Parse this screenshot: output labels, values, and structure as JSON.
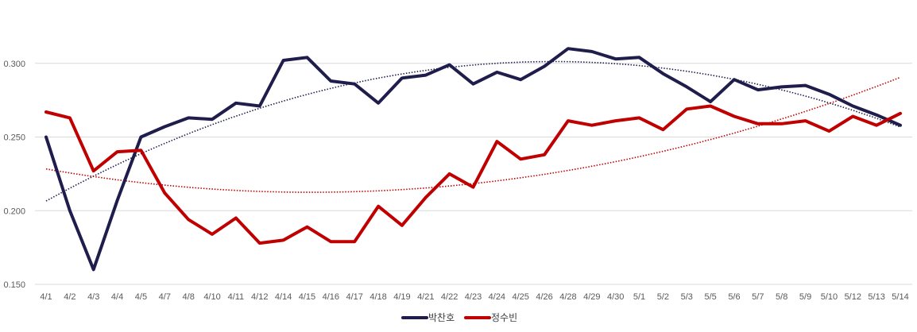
{
  "chart_data": {
    "type": "line",
    "title": "",
    "xlabel": "",
    "ylabel": "",
    "ylim": [
      0.15,
      0.33
    ],
    "yticks": [
      "0.150",
      "0.200",
      "0.250",
      "0.300"
    ],
    "grid": true,
    "legend_position": "bottom",
    "categories": [
      "4/1",
      "4/2",
      "4/3",
      "4/4",
      "4/5",
      "4/7",
      "4/8",
      "4/10",
      "4/11",
      "4/12",
      "4/14",
      "4/15",
      "4/16",
      "4/17",
      "4/18",
      "4/19",
      "4/21",
      "4/22",
      "4/23",
      "4/24",
      "4/25",
      "4/26",
      "4/28",
      "4/29",
      "4/30",
      "5/1",
      "5/2",
      "5/3",
      "5/5",
      "5/6",
      "5/7",
      "5/8",
      "5/9",
      "5/10",
      "5/12",
      "5/13",
      "5/14"
    ],
    "series": [
      {
        "name": "박찬호",
        "color": "#1f1d4b",
        "values": [
          0.25,
          0.2,
          0.16,
          0.207,
          0.25,
          0.257,
          0.263,
          0.262,
          0.273,
          0.271,
          0.302,
          0.304,
          0.288,
          0.286,
          0.273,
          0.29,
          0.292,
          0.299,
          0.286,
          0.294,
          0.289,
          0.298,
          0.31,
          0.308,
          0.303,
          0.304,
          0.293,
          0.284,
          0.274,
          0.289,
          0.282,
          0.284,
          0.285,
          0.279,
          0.271,
          0.265,
          0.258
        ],
        "trendline": {
          "type": "polynomial",
          "style": "dotted"
        }
      },
      {
        "name": "정수빈",
        "color": "#c00000",
        "values": [
          0.267,
          0.263,
          0.227,
          0.24,
          0.241,
          0.212,
          0.194,
          0.184,
          0.195,
          0.178,
          0.18,
          0.189,
          0.179,
          0.179,
          0.203,
          0.19,
          0.209,
          0.225,
          0.216,
          0.247,
          0.235,
          0.238,
          0.261,
          0.258,
          0.261,
          0.263,
          0.255,
          0.269,
          0.271,
          0.264,
          0.259,
          0.259,
          0.261,
          0.254,
          0.264,
          0.258,
          0.266
        ],
        "trendline": {
          "type": "polynomial",
          "style": "dotted"
        }
      }
    ]
  }
}
